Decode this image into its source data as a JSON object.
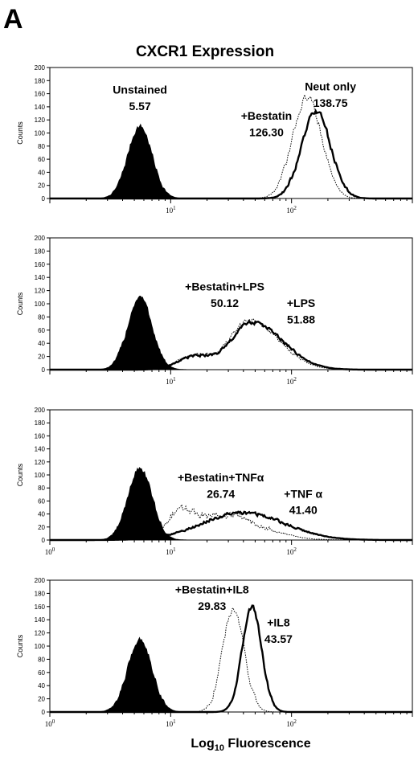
{
  "figure": {
    "panel_letter": "A",
    "title": "CXCR1 Expression",
    "xlabel_prefix": "Log",
    "xlabel_sub": "10",
    "xlabel_suffix": " Fluorescence"
  },
  "chart_data": [
    {
      "type": "area",
      "ylabel": "Counts",
      "ylim": [
        0,
        200
      ],
      "yticks": [
        0,
        20,
        40,
        60,
        80,
        100,
        120,
        140,
        160,
        180,
        200
      ],
      "xscale": "log",
      "xlim": [
        1,
        1000
      ],
      "xtick_labels": [
        "10",
        "1",
        "10",
        "2"
      ],
      "show_x100_label": false,
      "series": [
        {
          "style": "filled",
          "peak_x": 5.57,
          "peak_y": 110,
          "width": 0.1,
          "noise": 6,
          "skew": 0,
          "shoulder": null
        },
        {
          "style": "dotted",
          "peak_x": 135,
          "peak_y": 155,
          "width": 0.12,
          "noise": 8,
          "skew": 0,
          "shoulder": null
        },
        {
          "style": "solid",
          "peak_x": 160,
          "peak_y": 133,
          "width": 0.12,
          "noise": 6,
          "skew": 0,
          "shoulder": null
        }
      ],
      "annotations": [
        {
          "text": "Unstained",
          "x": 5.57,
          "y": 160
        },
        {
          "text": "5.57",
          "x": 5.57,
          "y": 135
        },
        {
          "text": "Neut only",
          "x": 210,
          "y": 165
        },
        {
          "text": "138.75",
          "x": 210,
          "y": 140
        },
        {
          "text": "+Bestatin",
          "x": 62,
          "y": 120
        },
        {
          "text": "126.30",
          "x": 62,
          "y": 95
        }
      ]
    },
    {
      "type": "area",
      "ylabel": "Counts",
      "ylim": [
        0,
        200
      ],
      "yticks": [
        0,
        20,
        40,
        60,
        80,
        100,
        120,
        140,
        160,
        180,
        200
      ],
      "xscale": "log",
      "xlim": [
        1,
        1000
      ],
      "xtick_labels": [
        "10",
        "1",
        "10",
        "2"
      ],
      "show_x100_label": false,
      "series": [
        {
          "style": "filled",
          "peak_x": 5.57,
          "peak_y": 110,
          "width": 0.1,
          "noise": 6,
          "skew": 0,
          "shoulder": null
        },
        {
          "style": "dotted",
          "peak_x": 45,
          "peak_y": 75,
          "width": 0.2,
          "noise": 5,
          "skew": 0.05,
          "shoulder": {
            "x": 16,
            "y": 22,
            "width": 0.14
          }
        },
        {
          "style": "solid",
          "peak_x": 47,
          "peak_y": 72,
          "width": 0.21,
          "noise": 4,
          "skew": 0.05,
          "shoulder": {
            "x": 16,
            "y": 20,
            "width": 0.14
          }
        }
      ],
      "annotations": [
        {
          "text": "+Bestatin+LPS",
          "x": 28,
          "y": 120
        },
        {
          "text": "50.12",
          "x": 28,
          "y": 95
        },
        {
          "text": "+LPS",
          "x": 120,
          "y": 95
        },
        {
          "text": "51.88",
          "x": 120,
          "y": 70
        }
      ]
    },
    {
      "type": "area",
      "ylabel": "Counts",
      "ylim": [
        0,
        200
      ],
      "yticks": [
        0,
        20,
        40,
        60,
        80,
        100,
        120,
        140,
        160,
        180,
        200
      ],
      "xscale": "log",
      "xlim": [
        1,
        1000
      ],
      "xtick_labels": [
        "10",
        "0",
        "10",
        "1",
        "10",
        "2"
      ],
      "show_x100_label": true,
      "series": [
        {
          "style": "filled",
          "peak_x": 5.57,
          "peak_y": 110,
          "width": 0.1,
          "noise": 6,
          "skew": 0,
          "shoulder": null
        },
        {
          "style": "dotted",
          "peak_x": 28,
          "peak_y": 38,
          "width": 0.3,
          "noise": 8,
          "skew": 0,
          "shoulder": {
            "x": 12,
            "y": 30,
            "width": 0.1
          }
        },
        {
          "style": "solid",
          "peak_x": 40,
          "peak_y": 42,
          "width": 0.34,
          "noise": 4,
          "skew": 0,
          "shoulder": null
        }
      ],
      "annotations": [
        {
          "text": "+Bestatin+TNFα",
          "x": 26,
          "y": 90
        },
        {
          "text": "26.74",
          "x": 26,
          "y": 65
        },
        {
          "text": "+TNF α",
          "x": 125,
          "y": 65
        },
        {
          "text": "41.40",
          "x": 125,
          "y": 40
        }
      ]
    },
    {
      "type": "area",
      "ylabel": "Counts",
      "ylim": [
        0,
        200
      ],
      "yticks": [
        0,
        20,
        40,
        60,
        80,
        100,
        120,
        140,
        160,
        180,
        200
      ],
      "xscale": "log",
      "xlim": [
        1,
        1000
      ],
      "xtick_labels": [
        "10",
        "0",
        "10",
        "1",
        "10",
        "2"
      ],
      "show_x100_label": true,
      "series": [
        {
          "style": "filled",
          "peak_x": 5.57,
          "peak_y": 110,
          "width": 0.1,
          "noise": 6,
          "skew": 0,
          "shoulder": null
        },
        {
          "style": "dotted",
          "peak_x": 33,
          "peak_y": 155,
          "width": 0.09,
          "noise": 8,
          "skew": 0,
          "shoulder": null
        },
        {
          "style": "solid",
          "peak_x": 47,
          "peak_y": 160,
          "width": 0.08,
          "noise": 5,
          "skew": 0,
          "shoulder": null
        }
      ],
      "annotations": [
        {
          "text": "+Bestatin+IL8",
          "x": 22,
          "y": 180
        },
        {
          "text": "29.83",
          "x": 22,
          "y": 155
        },
        {
          "text": "+IL8",
          "x": 78,
          "y": 130
        },
        {
          "text": "43.57",
          "x": 78,
          "y": 105
        }
      ]
    }
  ]
}
